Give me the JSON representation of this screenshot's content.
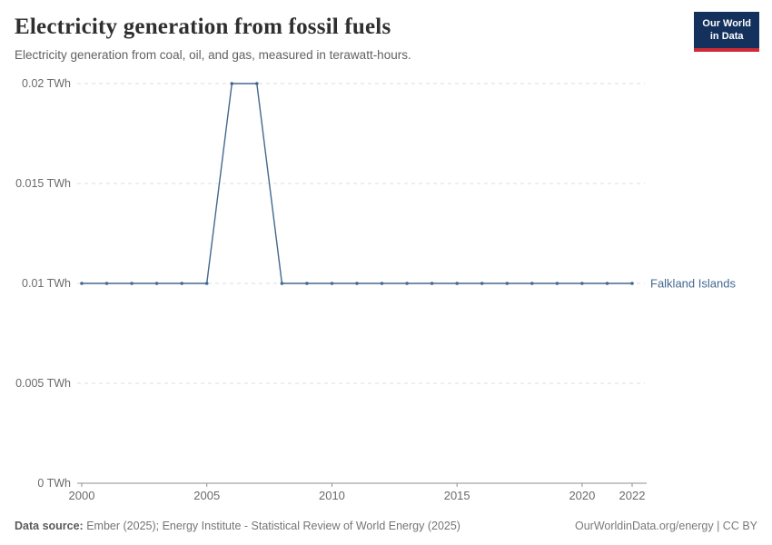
{
  "header": {
    "title": "Electricity generation from fossil fuels",
    "subtitle": "Electricity generation from coal, oil, and gas, measured in terawatt-hours.",
    "logo": {
      "line1": "Our World",
      "line2": "in Data"
    }
  },
  "chart_data": {
    "type": "line",
    "title": "Electricity generation from fossil fuels",
    "x": [
      2000,
      2001,
      2002,
      2003,
      2004,
      2005,
      2006,
      2007,
      2008,
      2009,
      2010,
      2011,
      2012,
      2013,
      2014,
      2015,
      2016,
      2017,
      2018,
      2019,
      2020,
      2021,
      2022
    ],
    "series": [
      {
        "name": "Falkland Islands",
        "color": "#44688f",
        "values": [
          0.01,
          0.01,
          0.01,
          0.01,
          0.01,
          0.01,
          0.02,
          0.02,
          0.01,
          0.01,
          0.01,
          0.01,
          0.01,
          0.01,
          0.01,
          0.01,
          0.01,
          0.01,
          0.01,
          0.01,
          0.01,
          0.01,
          0.01
        ]
      }
    ],
    "xlim": [
      2000,
      2022
    ],
    "ylim": [
      0,
      0.02
    ],
    "yticks": [
      0,
      0.005,
      0.01,
      0.015,
      0.02
    ],
    "ytick_labels": [
      "0 TWh",
      "0.005 TWh",
      "0.01 TWh",
      "0.015 TWh",
      "0.02 TWh"
    ],
    "xticks": [
      2000,
      2005,
      2010,
      2015,
      2020,
      2022
    ],
    "xtick_labels": [
      "2000",
      "2005",
      "2010",
      "2015",
      "2020",
      "2022"
    ],
    "grid": true,
    "legend_position": "right-of-line",
    "colors": {
      "gridline": "#dcdcdc",
      "axis": "#8f8f8f",
      "tick_text": "#6b6b6b"
    }
  },
  "footer": {
    "source_label": "Data source:",
    "source_text": " Ember (2025); Energy Institute - Statistical Review of World Energy (2025)",
    "credit": "OurWorldinData.org/energy | CC BY"
  }
}
